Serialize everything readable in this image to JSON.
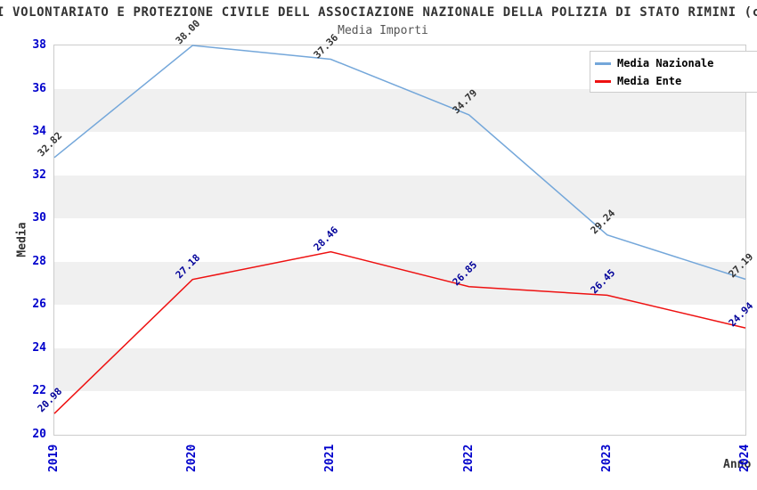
{
  "chart_data": {
    "type": "line",
    "title": "I VOLONTARIATO E PROTEZIONE CIVILE DELL ASSOCIAZIONE NAZIONALE DELLA POLIZIA DI STATO RIMINI (c",
    "subtitle": "Media Importi",
    "xlabel": "Anno",
    "ylabel": "Media",
    "categories": [
      "2019",
      "2020",
      "2021",
      "2022",
      "2023",
      "2024"
    ],
    "y_ticks": [
      "20",
      "22",
      "24",
      "26",
      "28",
      "30",
      "32",
      "34",
      "36",
      "38"
    ],
    "ylim": [
      20,
      38
    ],
    "grid": "alternating-horizontal-bands",
    "band_color": "#f0f0f0",
    "legend_position": "top-right",
    "series": [
      {
        "name": "Media Nazionale",
        "color": "#74a7da",
        "label_color": "#333333",
        "values": [
          32.82,
          38.0,
          37.36,
          34.79,
          29.24,
          27.19
        ],
        "point_labels": [
          "32.82",
          "38.00",
          "37.36",
          "34.79",
          "29.24",
          "27.19"
        ]
      },
      {
        "name": "Media Ente",
        "color": "#ee1111",
        "label_color": "#000099",
        "values": [
          20.98,
          27.18,
          28.46,
          26.85,
          26.45,
          24.94
        ],
        "point_labels": [
          "20.98",
          "27.18",
          "28.46",
          "26.85",
          "26.45",
          "24.94"
        ]
      }
    ]
  }
}
